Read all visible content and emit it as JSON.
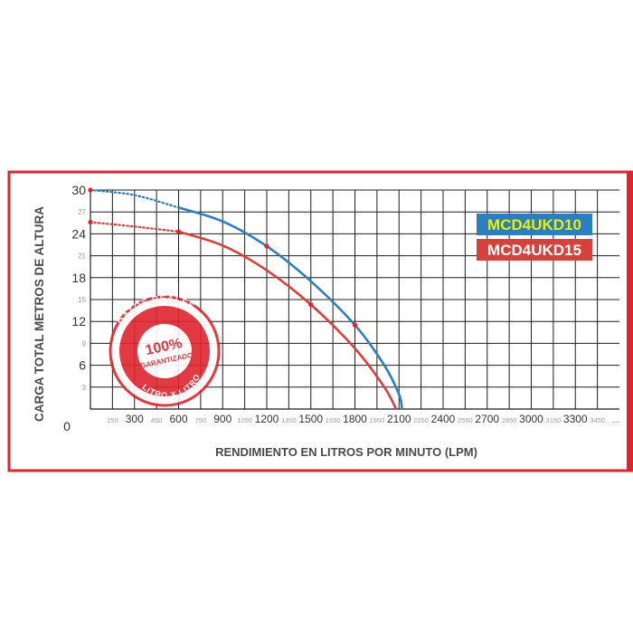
{
  "chart_data": {
    "type": "line",
    "ylabel": "CARGA TOTAL METROS DE ALTURA",
    "xlabel": "RENDIMIENTO EN LITROS POR MINUTO (LPM)",
    "xlim": [
      0,
      3600
    ],
    "ylim": [
      0,
      30
    ],
    "grid": true,
    "legend_position": "top-right",
    "x_ticks": [
      {
        "value": 150,
        "label": "150",
        "major": false
      },
      {
        "value": 300,
        "label": "300",
        "major": true
      },
      {
        "value": 450,
        "label": "450",
        "major": false
      },
      {
        "value": 600,
        "label": "600",
        "major": true
      },
      {
        "value": 750,
        "label": "750",
        "major": false
      },
      {
        "value": 900,
        "label": "900",
        "major": true
      },
      {
        "value": 1050,
        "label": "1050",
        "major": false
      },
      {
        "value": 1200,
        "label": "1200",
        "major": true
      },
      {
        "value": 1350,
        "label": "1350",
        "major": false
      },
      {
        "value": 1500,
        "label": "1500",
        "major": true
      },
      {
        "value": 1650,
        "label": "1650",
        "major": false
      },
      {
        "value": 1800,
        "label": "1800",
        "major": true
      },
      {
        "value": 1950,
        "label": "1950",
        "major": false
      },
      {
        "value": 2100,
        "label": "2100",
        "major": true
      },
      {
        "value": 2250,
        "label": "2250",
        "major": false
      },
      {
        "value": 2400,
        "label": "2400",
        "major": true
      },
      {
        "value": 2550,
        "label": "2550",
        "major": false
      },
      {
        "value": 2700,
        "label": "2700",
        "major": true
      },
      {
        "value": 2850,
        "label": "2850",
        "major": false
      },
      {
        "value": 3000,
        "label": "3000",
        "major": true
      },
      {
        "value": 3150,
        "label": "3150",
        "major": false
      },
      {
        "value": 3300,
        "label": "3300",
        "major": true
      },
      {
        "value": 3450,
        "label": "3450",
        "major": false
      }
    ],
    "x_ticks_trailing": "...",
    "y_ticks": [
      {
        "value": 0,
        "label": "0",
        "major": true
      },
      {
        "value": 3,
        "label": "3",
        "major": false
      },
      {
        "value": 6,
        "label": "6",
        "major": true
      },
      {
        "value": 9,
        "label": "9",
        "major": false
      },
      {
        "value": 12,
        "label": "12",
        "major": true
      },
      {
        "value": 15,
        "label": "15",
        "major": false
      },
      {
        "value": 18,
        "label": "18",
        "major": true
      },
      {
        "value": 21,
        "label": "21",
        "major": false
      },
      {
        "value": 24,
        "label": "24",
        "major": true
      },
      {
        "value": 27,
        "label": "27",
        "major": false
      },
      {
        "value": 30,
        "label": "30",
        "major": true
      }
    ],
    "series": [
      {
        "name": "MCD4UKD10",
        "color": "#2b7fc1",
        "legend_bg": "#2b7fc1",
        "legend_text_color": "#e8f000",
        "dotted": [
          [
            0,
            30
          ],
          [
            300,
            29.3
          ],
          [
            600,
            27.6
          ]
        ],
        "solid": [
          [
            600,
            27.6
          ],
          [
            900,
            25.7
          ],
          [
            1200,
            22.3
          ],
          [
            1500,
            17.5
          ],
          [
            1800,
            11.5
          ],
          [
            2000,
            6
          ],
          [
            2100,
            2
          ],
          [
            2120,
            0
          ]
        ],
        "markers": [
          [
            0,
            30
          ],
          [
            1200,
            22.3
          ],
          [
            1800,
            11.5
          ]
        ]
      },
      {
        "name": "MCD4UKD15",
        "color": "#d8403a",
        "legend_bg": "#d8403a",
        "legend_text_color": "#ffffff",
        "dotted": [
          [
            0,
            25.6
          ],
          [
            300,
            25
          ],
          [
            600,
            24.3
          ]
        ],
        "solid": [
          [
            600,
            24.3
          ],
          [
            900,
            22.4
          ],
          [
            1200,
            19
          ],
          [
            1500,
            14.3
          ],
          [
            1800,
            8.3
          ],
          [
            2000,
            3
          ],
          [
            2080,
            0
          ]
        ],
        "markers": [
          [
            0,
            25.6
          ],
          [
            600,
            24.3
          ],
          [
            1500,
            14.3
          ]
        ]
      }
    ]
  },
  "stamp": {
    "text_top": "DATOS REALES",
    "text_center_1": "100%",
    "text_center_2": "GARANTIZADO",
    "text_bottom": "LITRO X LITRO"
  },
  "colors": {
    "frame": "#e0242e",
    "axis_text": "#4a4a4a",
    "grid": "#1f1f1f"
  }
}
